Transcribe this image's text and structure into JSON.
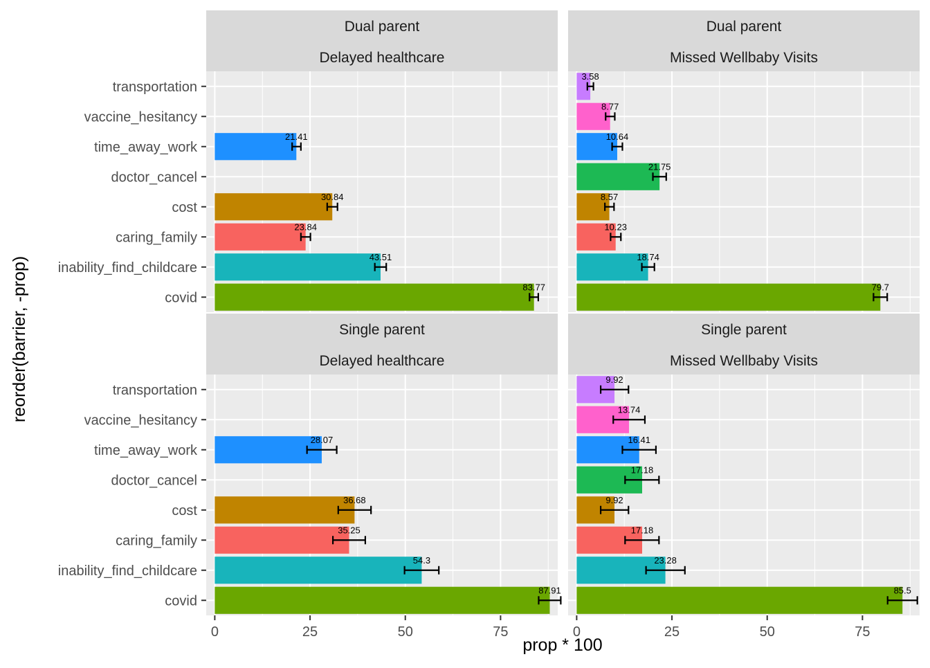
{
  "chart_data": {
    "type": "bar",
    "orientation": "horizontal",
    "facet_rows": [
      "Dual parent",
      "Single parent"
    ],
    "facet_cols": [
      "Delayed healthcare",
      "Missed Wellbaby Visits"
    ],
    "xlabel": "prop * 100",
    "ylabel": "reorder(barrier, -prop)",
    "categories": [
      "transportation",
      "vaccine_hesitancy",
      "time_away_work",
      "doctor_cancel",
      "cost",
      "caring_family",
      "inability_find_childcare",
      "covid"
    ],
    "x_ticks": [
      0,
      25,
      50,
      75
    ],
    "xlim": [
      -2.25,
      90
    ],
    "grid": true,
    "colors": {
      "transportation": "#c77cff",
      "vaccine_hesitancy": "#ff61cc",
      "time_away_work": "#1e90ff",
      "doctor_cancel": "#1db954",
      "cost": "#c08400",
      "caring_family": "#f8635f",
      "inability_find_childcare": "#18b4bb",
      "covid": "#6aa700"
    },
    "panels": [
      {
        "row": "Dual parent",
        "col": "Delayed healthcare",
        "bars": [
          {
            "category": "time_away_work",
            "value": 21.41,
            "label": "21.41",
            "ci": [
              20.3,
              22.6
            ]
          },
          {
            "category": "cost",
            "value": 30.84,
            "label": "30.84",
            "ci": [
              29.5,
              32.2
            ]
          },
          {
            "category": "caring_family",
            "value": 23.84,
            "label": "23.84",
            "ci": [
              22.6,
              25.1
            ]
          },
          {
            "category": "inability_find_childcare",
            "value": 43.51,
            "label": "43.51",
            "ci": [
              42.0,
              45.0
            ]
          },
          {
            "category": "covid",
            "value": 83.77,
            "label": "83.77",
            "ci": [
              82.6,
              84.9
            ]
          }
        ]
      },
      {
        "row": "Dual parent",
        "col": "Missed Wellbaby Visits",
        "bars": [
          {
            "category": "transportation",
            "value": 3.58,
            "label": "3.58",
            "ci": [
              2.8,
              4.4
            ]
          },
          {
            "category": "vaccine_hesitancy",
            "value": 8.77,
            "label": "8.77",
            "ci": [
              7.6,
              10.0
            ]
          },
          {
            "category": "time_away_work",
            "value": 10.64,
            "label": "10.64",
            "ci": [
              9.3,
              12.0
            ]
          },
          {
            "category": "doctor_cancel",
            "value": 21.75,
            "label": "21.75",
            "ci": [
              20.0,
              23.5
            ]
          },
          {
            "category": "cost",
            "value": 8.57,
            "label": "8.57",
            "ci": [
              7.4,
              9.8
            ]
          },
          {
            "category": "caring_family",
            "value": 10.23,
            "label": "10.23",
            "ci": [
              8.9,
              11.6
            ]
          },
          {
            "category": "inability_find_childcare",
            "value": 18.74,
            "label": "18.74",
            "ci": [
              17.1,
              20.4
            ]
          },
          {
            "category": "covid",
            "value": 79.7,
            "label": "79.7",
            "ci": [
              77.9,
              81.5
            ]
          }
        ]
      },
      {
        "row": "Single parent",
        "col": "Delayed healthcare",
        "bars": [
          {
            "category": "time_away_work",
            "value": 28.07,
            "label": "28.07",
            "ci": [
              24.2,
              32.0
            ]
          },
          {
            "category": "cost",
            "value": 36.68,
            "label": "36.68",
            "ci": [
              32.4,
              41.0
            ]
          },
          {
            "category": "caring_family",
            "value": 35.25,
            "label": "35.25",
            "ci": [
              31.0,
              39.5
            ]
          },
          {
            "category": "inability_find_childcare",
            "value": 54.3,
            "label": "54.3",
            "ci": [
              49.8,
              58.8
            ]
          },
          {
            "category": "covid",
            "value": 87.91,
            "label": "87.91",
            "ci": [
              85.0,
              90.8
            ]
          }
        ]
      },
      {
        "row": "Single parent",
        "col": "Missed Wellbaby Visits",
        "bars": [
          {
            "category": "transportation",
            "value": 9.92,
            "label": "9.92",
            "ci": [
              6.3,
              13.6
            ]
          },
          {
            "category": "vaccine_hesitancy",
            "value": 13.74,
            "label": "13.74",
            "ci": [
              9.6,
              17.9
            ]
          },
          {
            "category": "time_away_work",
            "value": 16.41,
            "label": "16.41",
            "ci": [
              12.0,
              20.8
            ]
          },
          {
            "category": "doctor_cancel",
            "value": 17.18,
            "label": "17.18",
            "ci": [
              12.7,
              21.6
            ]
          },
          {
            "category": "cost",
            "value": 9.92,
            "label": "9.92",
            "ci": [
              6.3,
              13.6
            ]
          },
          {
            "category": "caring_family",
            "value": 17.18,
            "label": "17.18",
            "ci": [
              12.7,
              21.6
            ]
          },
          {
            "category": "inability_find_childcare",
            "value": 23.28,
            "label": "23.28",
            "ci": [
              18.2,
              28.4
            ]
          },
          {
            "category": "covid",
            "value": 85.5,
            "label": "85.5",
            "ci": [
              81.6,
              89.4
            ]
          }
        ]
      }
    ]
  }
}
